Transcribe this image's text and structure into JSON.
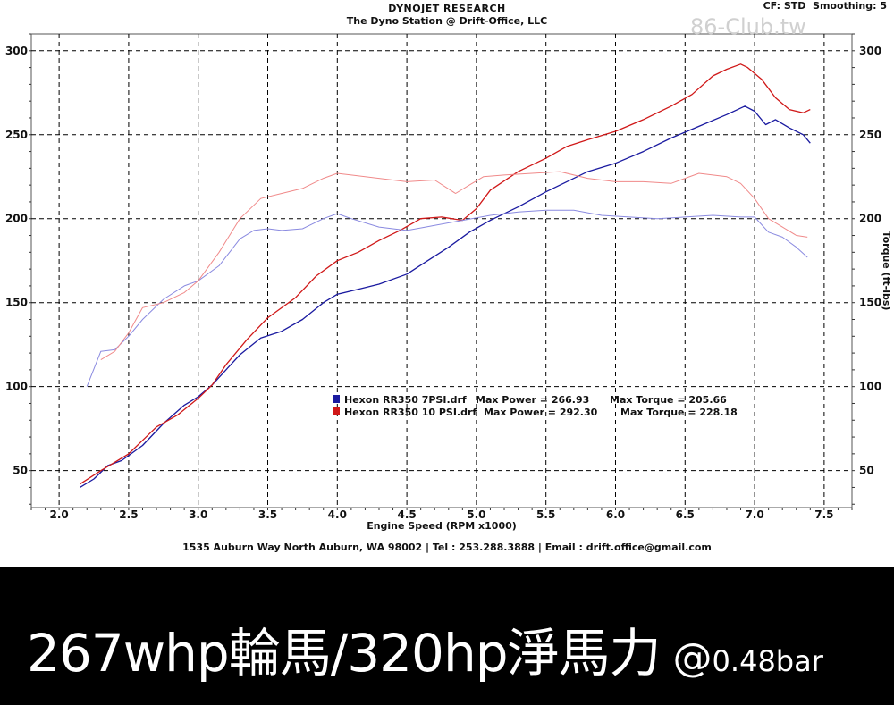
{
  "header": {
    "line1": "DYNOJET RESEARCH",
    "line2": "The Dyno Station @ Drift-Office, LLC",
    "cf": "CF: STD  Smoothing: 5"
  },
  "watermark": "86-Club.tw",
  "footer": "1535 Auburn Way North Auburn, WA 98002 | Tel : 253.288.3888 | Email : drift.office@gmail.com",
  "banner": {
    "main": "267whp輪馬/320hp淨馬力",
    "at": "@",
    "bar": "0.48bar"
  },
  "colors": {
    "run1": "#1a1aa0",
    "run2": "#d01818",
    "run1_light": "#8a8ae0",
    "run2_light": "#f08a8a"
  },
  "chart_data": {
    "type": "line",
    "xlabel": "Engine Speed (RPM x1000)",
    "ylabel_right": "Torque (ft-lbs)",
    "xlim": [
      1.8,
      7.7
    ],
    "ylim": [
      28,
      310
    ],
    "x_ticks": [
      "2.0",
      "2.5",
      "3.0",
      "3.5",
      "4.0",
      "4.5",
      "5.0",
      "5.5",
      "6.0",
      "6.5",
      "7.0",
      "7.5"
    ],
    "y_ticks": [
      "50",
      "100",
      "150",
      "200",
      "250",
      "300"
    ],
    "legend": [
      {
        "file": "Hexon RR350 7PSI.drf",
        "max_power_label": "Max Power = 266.93",
        "max_torque_label": "Max Torque = 205.66"
      },
      {
        "file": "Hexon RR350 10 PSI.drf",
        "max_power_label": "Max Power = 292.30",
        "max_torque_label": "Max Torque = 228.18"
      }
    ],
    "series": [
      {
        "run": "Hexon RR350 7PSI.drf",
        "quantity": "power",
        "x": [
          2.15,
          2.25,
          2.35,
          2.45,
          2.6,
          2.75,
          2.9,
          3.0,
          3.1,
          3.2,
          3.3,
          3.45,
          3.6,
          3.75,
          3.9,
          4.0,
          4.15,
          4.3,
          4.5,
          4.65,
          4.8,
          4.95,
          5.1,
          5.3,
          5.5,
          5.65,
          5.8,
          6.0,
          6.2,
          6.4,
          6.6,
          6.8,
          6.93,
          7.0,
          7.08,
          7.15,
          7.25,
          7.35,
          7.4
        ],
        "y": [
          40,
          45,
          53,
          56,
          65,
          78,
          89,
          94,
          101,
          110,
          119,
          129,
          133,
          140,
          150,
          155,
          158,
          161,
          167,
          175,
          183,
          192,
          199,
          207,
          216,
          222,
          228,
          233,
          240,
          248,
          255,
          262,
          267,
          264,
          256,
          259,
          254,
          250,
          245
        ]
      },
      {
        "run": "Hexon RR350 10 PSI.drf",
        "quantity": "power",
        "x": [
          2.15,
          2.3,
          2.4,
          2.5,
          2.6,
          2.7,
          2.85,
          3.0,
          3.1,
          3.2,
          3.35,
          3.5,
          3.7,
          3.85,
          4.0,
          4.15,
          4.3,
          4.45,
          4.6,
          4.75,
          4.9,
          5.0,
          5.1,
          5.3,
          5.5,
          5.65,
          5.8,
          6.0,
          6.2,
          6.4,
          6.55,
          6.7,
          6.8,
          6.9,
          6.95,
          7.05,
          7.15,
          7.25,
          7.35,
          7.4
        ],
        "y": [
          42,
          50,
          55,
          60,
          68,
          76,
          83,
          93,
          101,
          113,
          128,
          141,
          153,
          166,
          175,
          180,
          187,
          193,
          200,
          201,
          199,
          206,
          217,
          228,
          236,
          243,
          247,
          252,
          259,
          267,
          274,
          285,
          289,
          292,
          290,
          283,
          272,
          265,
          263,
          265
        ]
      },
      {
        "run": "Hexon RR350 7PSI.drf",
        "quantity": "torque",
        "x": [
          2.2,
          2.3,
          2.4,
          2.5,
          2.6,
          2.75,
          2.9,
          3.0,
          3.15,
          3.3,
          3.4,
          3.5,
          3.6,
          3.75,
          3.9,
          4.0,
          4.1,
          4.3,
          4.5,
          4.7,
          4.9,
          5.1,
          5.3,
          5.5,
          5.7,
          5.9,
          6.1,
          6.3,
          6.5,
          6.7,
          6.9,
          7.0,
          7.1,
          7.2,
          7.3,
          7.38
        ],
        "y": [
          100,
          121,
          122,
          130,
          140,
          152,
          160,
          163,
          172,
          188,
          193,
          194,
          193,
          194,
          200,
          203,
          200,
          195,
          193,
          196,
          199,
          202,
          204,
          205,
          205,
          202,
          201,
          200,
          201,
          202,
          201,
          201,
          192,
          189,
          183,
          177
        ]
      },
      {
        "run": "Hexon RR350 10 PSI.drf",
        "quantity": "torque",
        "x": [
          2.3,
          2.4,
          2.5,
          2.6,
          2.75,
          2.9,
          3.0,
          3.15,
          3.3,
          3.45,
          3.6,
          3.75,
          3.9,
          4.0,
          4.1,
          4.3,
          4.5,
          4.7,
          4.85,
          4.95,
          5.05,
          5.2,
          5.4,
          5.6,
          5.8,
          6.0,
          6.2,
          6.4,
          6.6,
          6.8,
          6.9,
          7.0,
          7.1,
          7.2,
          7.3,
          7.38
        ],
        "y": [
          116,
          121,
          132,
          147,
          150,
          156,
          163,
          180,
          200,
          212,
          215,
          218,
          224,
          227,
          226,
          224,
          222,
          223,
          215,
          220,
          225,
          226,
          227,
          228,
          224,
          222,
          222,
          221,
          227,
          225,
          221,
          212,
          200,
          195,
          190,
          189
        ]
      }
    ]
  }
}
